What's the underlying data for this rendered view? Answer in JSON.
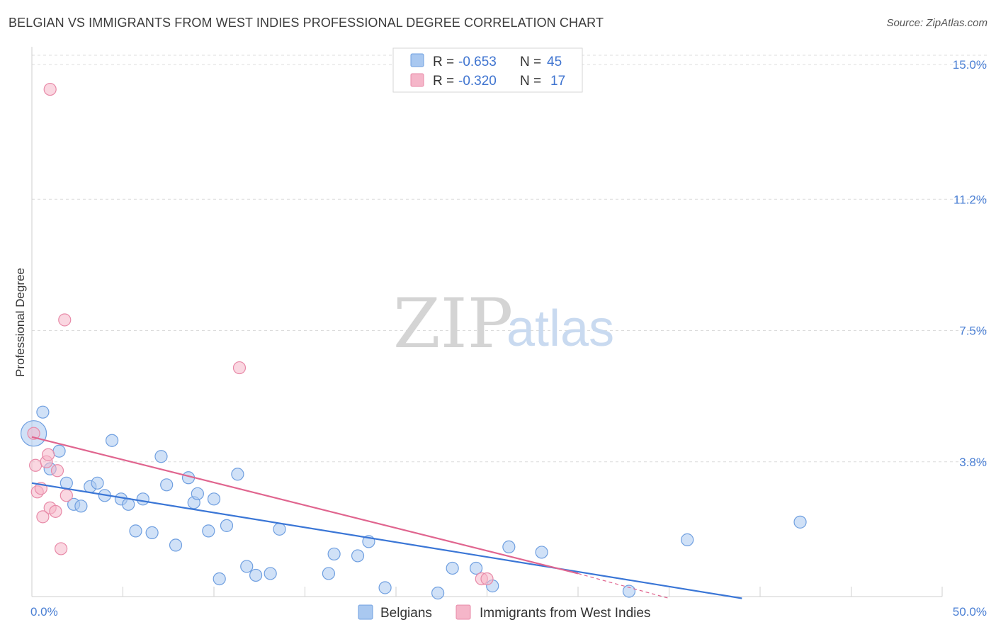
{
  "title": "BELGIAN VS IMMIGRANTS FROM WEST INDIES PROFESSIONAL DEGREE CORRELATION CHART",
  "source": "Source: ZipAtlas.com",
  "watermark": {
    "zip": "ZIP",
    "atlas": "atlas"
  },
  "legend": {
    "rows": [
      {
        "r_label": "R =",
        "r_value": "-0.653",
        "n_label": "N =",
        "n_value": "45",
        "color": "#a9c8f0"
      },
      {
        "r_label": "R =",
        "r_value": "-0.320",
        "n_label": "N =",
        "n_value": "17",
        "color": "#f5b6c9"
      }
    ]
  },
  "chart_data": {
    "type": "scatter",
    "title": "BELGIAN VS IMMIGRANTS FROM WEST INDIES PROFESSIONAL DEGREE CORRELATION CHART",
    "xlabel": "",
    "ylabel": "Professional Degree",
    "xlim": [
      0,
      50
    ],
    "ylim": [
      0,
      15.5
    ],
    "x_tick_labels": [
      "0.0%",
      "50.0%"
    ],
    "y_ticks": [
      3.8,
      7.5,
      11.2,
      15.0
    ],
    "y_tick_labels": [
      "3.8%",
      "7.5%",
      "11.2%",
      "15.0%"
    ],
    "grid": "horizontal dashed",
    "legend_position": "top-center",
    "series": [
      {
        "name": "Belgians",
        "color": "#a9c8f0",
        "stroke": "#6f9fe0",
        "trend_color": "#3a76d6",
        "trend": {
          "x": [
            0,
            39
          ],
          "y": [
            3.2,
            -0.05
          ]
        },
        "points": [
          [
            0.1,
            4.6
          ],
          [
            0.6,
            5.2
          ],
          [
            1.0,
            3.6
          ],
          [
            1.5,
            4.1
          ],
          [
            1.9,
            3.2
          ],
          [
            2.3,
            2.6
          ],
          [
            2.7,
            2.55
          ],
          [
            3.2,
            3.1
          ],
          [
            3.6,
            3.2
          ],
          [
            4.0,
            2.85
          ],
          [
            4.4,
            4.4
          ],
          [
            4.9,
            2.75
          ],
          [
            5.3,
            2.6
          ],
          [
            5.7,
            1.85
          ],
          [
            6.1,
            2.75
          ],
          [
            6.6,
            1.8
          ],
          [
            7.1,
            3.95
          ],
          [
            7.4,
            3.15
          ],
          [
            7.9,
            1.45
          ],
          [
            8.6,
            3.35
          ],
          [
            8.9,
            2.65
          ],
          [
            9.1,
            2.9
          ],
          [
            9.7,
            1.85
          ],
          [
            10.0,
            2.75
          ],
          [
            10.3,
            0.5
          ],
          [
            10.7,
            2.0
          ],
          [
            11.3,
            3.45
          ],
          [
            11.8,
            0.85
          ],
          [
            12.3,
            0.6
          ],
          [
            13.1,
            0.65
          ],
          [
            13.6,
            1.9
          ],
          [
            16.3,
            0.65
          ],
          [
            16.6,
            1.2
          ],
          [
            17.9,
            1.15
          ],
          [
            18.5,
            1.55
          ],
          [
            19.4,
            0.25
          ],
          [
            22.3,
            0.1
          ],
          [
            23.1,
            0.8
          ],
          [
            24.4,
            0.8
          ],
          [
            25.3,
            0.3
          ],
          [
            26.2,
            1.4
          ],
          [
            28.0,
            1.25
          ],
          [
            32.8,
            0.15
          ],
          [
            36.0,
            1.6
          ],
          [
            42.2,
            2.1
          ]
        ]
      },
      {
        "name": "Immigrants from West Indies",
        "color": "#f5b6c9",
        "stroke": "#e88aa8",
        "trend_color": "#e0658f",
        "trend": {
          "x": [
            0,
            30
          ],
          "y": [
            4.5,
            0.65
          ]
        },
        "trend_dashed": {
          "x": [
            30,
            35
          ],
          "y": [
            0.65,
            -0.05
          ]
        },
        "points": [
          [
            0.1,
            4.6
          ],
          [
            0.2,
            3.7
          ],
          [
            0.3,
            2.95
          ],
          [
            0.5,
            3.05
          ],
          [
            0.6,
            2.25
          ],
          [
            0.8,
            3.8
          ],
          [
            0.9,
            4.0
          ],
          [
            1.0,
            2.5
          ],
          [
            1.0,
            14.3
          ],
          [
            1.3,
            2.4
          ],
          [
            1.4,
            3.55
          ],
          [
            1.6,
            1.35
          ],
          [
            1.8,
            7.8
          ],
          [
            1.9,
            2.85
          ],
          [
            11.4,
            6.45
          ],
          [
            24.7,
            0.5
          ],
          [
            25.0,
            0.5
          ]
        ]
      }
    ]
  }
}
